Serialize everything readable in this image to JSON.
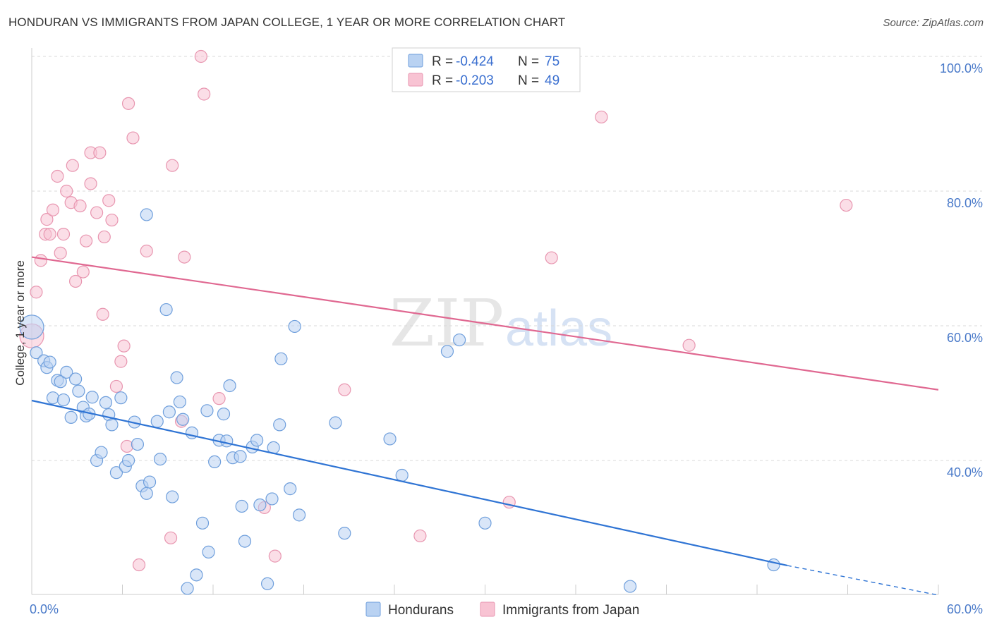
{
  "title": "HONDURAN VS IMMIGRANTS FROM JAPAN COLLEGE, 1 YEAR OR MORE CORRELATION CHART",
  "source": "Source: ZipAtlas.com",
  "watermark": {
    "zip": "ZIP",
    "atlas": "atlas"
  },
  "colors": {
    "blue_fill": "#b9d2f2",
    "blue_stroke": "#6f9fdc",
    "blue_line": "#2f74d4",
    "pink_fill": "#f8c3d3",
    "pink_stroke": "#e896b0",
    "pink_line": "#e06891",
    "grid": "#d8d8d8",
    "axis_label": "#4a7ac9"
  },
  "legend": {
    "rows": [
      {
        "r_label": "R =",
        "r_value": "-0.424",
        "n_label": "N =",
        "n_value": "75"
      },
      {
        "r_label": "R =",
        "r_value": "-0.203",
        "n_label": "N =",
        "n_value": "49"
      }
    ]
  },
  "chart_data": {
    "type": "scatter",
    "title": "HONDURAN VS IMMIGRANTS FROM JAPAN COLLEGE, 1 YEAR OR MORE CORRELATION CHART",
    "xlabel": "",
    "ylabel": "College, 1 year or more",
    "xlim": [
      0,
      60
    ],
    "ylim": [
      20,
      102
    ],
    "x_tick_labels": [
      "0.0%",
      "60.0%"
    ],
    "y_ticks": [
      {
        "value": 100,
        "label": "100.0%"
      },
      {
        "value": 80,
        "label": "80.0%"
      },
      {
        "value": 60,
        "label": "60.0%"
      },
      {
        "value": 40,
        "label": "40.0%"
      }
    ],
    "grid": true,
    "series": [
      {
        "name": "Hondurans",
        "r": -0.424,
        "n": 75,
        "trend": {
          "x0": 0,
          "y0": 48.9,
          "x1": 50,
          "y1": 24.4,
          "dash_to_x": 60,
          "dash_to_y": 20.0
        },
        "points": [
          [
            0,
            59.8
          ],
          [
            0.3,
            56.0
          ],
          [
            0.8,
            54.8
          ],
          [
            1.0,
            53.8
          ],
          [
            1.2,
            54.6
          ],
          [
            1.4,
            49.3
          ],
          [
            1.7,
            51.9
          ],
          [
            1.9,
            51.7
          ],
          [
            2.1,
            49.0
          ],
          [
            2.3,
            53.1
          ],
          [
            2.6,
            46.4
          ],
          [
            2.9,
            52.1
          ],
          [
            3.1,
            50.3
          ],
          [
            3.4,
            47.9
          ],
          [
            3.6,
            46.6
          ],
          [
            3.8,
            46.9
          ],
          [
            4.0,
            49.4
          ],
          [
            4.3,
            40.0
          ],
          [
            4.6,
            41.2
          ],
          [
            4.9,
            48.6
          ],
          [
            5.1,
            46.8
          ],
          [
            5.3,
            45.3
          ],
          [
            5.6,
            38.2
          ],
          [
            5.9,
            49.3
          ],
          [
            6.2,
            39.1
          ],
          [
            6.4,
            40.0
          ],
          [
            6.8,
            45.7
          ],
          [
            7.0,
            42.4
          ],
          [
            7.3,
            36.2
          ],
          [
            7.6,
            35.1
          ],
          [
            7.8,
            36.8
          ],
          [
            8.3,
            45.8
          ],
          [
            8.5,
            40.2
          ],
          [
            8.9,
            62.4
          ],
          [
            9.1,
            47.2
          ],
          [
            9.3,
            34.6
          ],
          [
            9.6,
            52.3
          ],
          [
            9.8,
            48.7
          ],
          [
            10.0,
            46.1
          ],
          [
            10.3,
            21.0
          ],
          [
            10.6,
            44.1
          ],
          [
            10.9,
            23.0
          ],
          [
            11.3,
            30.7
          ],
          [
            11.6,
            47.4
          ],
          [
            11.7,
            26.4
          ],
          [
            12.1,
            39.8
          ],
          [
            12.4,
            43.0
          ],
          [
            12.7,
            46.9
          ],
          [
            12.9,
            42.9
          ],
          [
            13.1,
            51.1
          ],
          [
            13.3,
            40.4
          ],
          [
            13.8,
            40.6
          ],
          [
            13.9,
            33.2
          ],
          [
            14.1,
            28.0
          ],
          [
            14.6,
            42.0
          ],
          [
            15.1,
            33.4
          ],
          [
            15.6,
            21.7
          ],
          [
            15.9,
            34.3
          ],
          [
            16.0,
            41.9
          ],
          [
            16.4,
            45.3
          ],
          [
            16.5,
            55.1
          ],
          [
            17.1,
            35.8
          ],
          [
            17.4,
            59.9
          ],
          [
            17.7,
            31.9
          ],
          [
            20.1,
            45.6
          ],
          [
            20.7,
            29.2
          ],
          [
            23.7,
            43.2
          ],
          [
            24.5,
            37.8
          ],
          [
            27.5,
            56.2
          ],
          [
            28.3,
            57.9
          ],
          [
            30.0,
            30.7
          ],
          [
            39.6,
            21.3
          ],
          [
            49.1,
            24.5
          ],
          [
            7.6,
            76.5
          ],
          [
            14.9,
            43.0
          ]
        ]
      },
      {
        "name": "Immigrants from Japan",
        "r": -0.203,
        "n": 49,
        "trend": {
          "x0": 0,
          "y0": 70.2,
          "x1": 60,
          "y1": 50.5
        },
        "points": [
          [
            0,
            58.5
          ],
          [
            0.3,
            65.0
          ],
          [
            0.6,
            69.7
          ],
          [
            0.9,
            73.6
          ],
          [
            1.0,
            75.8
          ],
          [
            1.2,
            73.6
          ],
          [
            1.4,
            77.2
          ],
          [
            1.7,
            82.2
          ],
          [
            1.9,
            70.8
          ],
          [
            2.1,
            73.6
          ],
          [
            2.3,
            80.0
          ],
          [
            2.6,
            78.3
          ],
          [
            2.7,
            83.8
          ],
          [
            2.9,
            66.6
          ],
          [
            3.2,
            77.8
          ],
          [
            3.4,
            68.0
          ],
          [
            3.6,
            72.6
          ],
          [
            3.9,
            85.7
          ],
          [
            3.9,
            81.1
          ],
          [
            4.3,
            76.8
          ],
          [
            4.5,
            85.7
          ],
          [
            4.7,
            61.7
          ],
          [
            4.8,
            73.2
          ],
          [
            5.1,
            78.6
          ],
          [
            5.3,
            75.7
          ],
          [
            5.6,
            51.0
          ],
          [
            5.9,
            54.7
          ],
          [
            6.1,
            57.0
          ],
          [
            6.3,
            42.1
          ],
          [
            6.4,
            93.0
          ],
          [
            6.7,
            87.9
          ],
          [
            7.1,
            24.5
          ],
          [
            7.6,
            71.1
          ],
          [
            9.2,
            28.5
          ],
          [
            9.3,
            83.8
          ],
          [
            9.9,
            45.8
          ],
          [
            10.1,
            70.2
          ],
          [
            11.2,
            100.0
          ],
          [
            11.4,
            94.4
          ],
          [
            12.4,
            49.2
          ],
          [
            15.4,
            33.0
          ],
          [
            16.1,
            25.8
          ],
          [
            20.7,
            50.5
          ],
          [
            25.7,
            28.8
          ],
          [
            31.6,
            33.8
          ],
          [
            34.4,
            70.1
          ],
          [
            37.7,
            91.0
          ],
          [
            43.5,
            57.1
          ],
          [
            53.9,
            77.9
          ]
        ]
      }
    ]
  },
  "bottom_legend": [
    "Hondurans",
    "Immigrants from Japan"
  ]
}
